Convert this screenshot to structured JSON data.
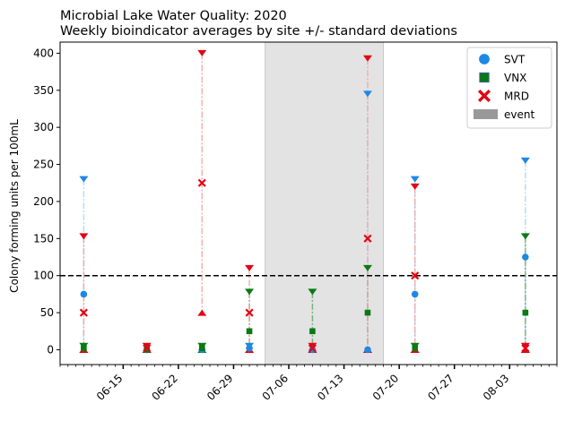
{
  "chart_data": {
    "type": "scatter",
    "title": "Microbial Lake Water Quality: 2020",
    "subtitle": "Weekly bioindicator averages by site +/- standard deviations",
    "xlabel": "",
    "ylabel": "Colony forming units per 100mL",
    "ylim": [
      -20,
      415
    ],
    "yticks": [
      0,
      50,
      100,
      150,
      200,
      250,
      300,
      350,
      400
    ],
    "xlim": [
      "2020-06-07",
      "2020-08-09"
    ],
    "xticks": [
      "06-15",
      "06-22",
      "06-29",
      "07-06",
      "07-13",
      "07-20",
      "07-27",
      "08-03"
    ],
    "threshold": 100,
    "event": {
      "name": "event",
      "start": "2020-07-03",
      "end": "2020-07-18",
      "color": "#999999"
    },
    "legend_position": "top-right",
    "grid": false,
    "series": [
      {
        "name": "SVT",
        "marker": "circle",
        "color": "#1e88e5",
        "err_color": "#a6d8f5",
        "points": [
          {
            "date": "2020-06-10",
            "mean": 75,
            "high": 230,
            "low": 0
          },
          {
            "date": "2020-06-18",
            "mean": 0,
            "high": 0,
            "low": 0
          },
          {
            "date": "2020-06-25",
            "mean": 0,
            "high": 0,
            "low": 0
          },
          {
            "date": "2020-07-01",
            "mean": 2,
            "high": 5,
            "low": 0
          },
          {
            "date": "2020-07-09",
            "mean": 0,
            "high": 0,
            "low": 0
          },
          {
            "date": "2020-07-16",
            "mean": 0,
            "high": 345,
            "low": 0
          },
          {
            "date": "2020-07-22",
            "mean": 75,
            "high": 230,
            "low": 0
          },
          {
            "date": "2020-08-05",
            "mean": 125,
            "high": 255,
            "low": 0
          }
        ]
      },
      {
        "name": "VNX",
        "marker": "square",
        "color": "#0a7a12",
        "err_color": "#6aa86e",
        "points": [
          {
            "date": "2020-06-10",
            "mean": 2,
            "high": 5,
            "low": 0
          },
          {
            "date": "2020-06-18",
            "mean": 0,
            "high": 0,
            "low": 0
          },
          {
            "date": "2020-06-25",
            "mean": 2,
            "high": 5,
            "low": 0
          },
          {
            "date": "2020-07-01",
            "mean": 25,
            "high": 78,
            "low": 0
          },
          {
            "date": "2020-07-09",
            "mean": 25,
            "high": 78,
            "low": 0
          },
          {
            "date": "2020-07-16",
            "mean": 50,
            "high": 110,
            "low": 0
          },
          {
            "date": "2020-07-22",
            "mean": 2,
            "high": 5,
            "low": 0
          },
          {
            "date": "2020-08-05",
            "mean": 50,
            "high": 153,
            "low": 0
          }
        ]
      },
      {
        "name": "MRD",
        "marker": "x",
        "color": "#e30613",
        "err_color": "#f5a3a3",
        "points": [
          {
            "date": "2020-06-10",
            "mean": 50,
            "high": 153,
            "low": 0
          },
          {
            "date": "2020-06-18",
            "mean": 2,
            "high": 5,
            "low": 0
          },
          {
            "date": "2020-06-25",
            "mean": 225,
            "high": 400,
            "low": 50
          },
          {
            "date": "2020-07-01",
            "mean": 50,
            "high": 110,
            "low": 0
          },
          {
            "date": "2020-07-09",
            "mean": 2,
            "high": 5,
            "low": 0
          },
          {
            "date": "2020-07-16",
            "mean": 150,
            "high": 393,
            "low": 0
          },
          {
            "date": "2020-07-22",
            "mean": 100,
            "high": 220,
            "low": 0
          },
          {
            "date": "2020-08-05",
            "mean": 2,
            "high": 5,
            "low": 0
          }
        ]
      }
    ]
  }
}
